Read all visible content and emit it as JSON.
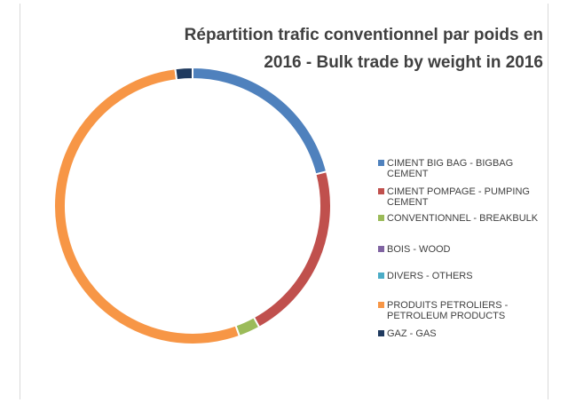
{
  "chart_data": {
    "type": "pie",
    "subtype": "donut",
    "title": "Répartition trafic conventionnel par poids en 2016 - Bulk trade by weight in 2016",
    "title_lines": [
      "Répartition trafic conventionnel par poids en",
      "2016 - Bulk trade by weight in 2016"
    ],
    "legend_position": "right",
    "slices": [
      {
        "label": "CIMENT BIG BAG - BIGBAG CEMENT",
        "value": 21.0,
        "color": "#4f81bd"
      },
      {
        "label": "CIMENT POMPAGE - PUMPING CEMENT",
        "value": 21.0,
        "color": "#c0504d"
      },
      {
        "label": "CONVENTIONNEL - BREAKBULK",
        "value": 2.5,
        "color": "#9bbb59"
      },
      {
        "label": "BOIS - WOOD",
        "value": 0,
        "color": "#8064a2"
      },
      {
        "label": "DIVERS - OTHERS",
        "value": 0,
        "color": "#4bacc6"
      },
      {
        "label": "PRODUITS PETROLIERS - PETROLEUM PRODUCTS",
        "value": 53.5,
        "color": "#f79646"
      },
      {
        "label": "GAZ - GAS",
        "value": 2.0,
        "color": "#1f3a5f"
      }
    ]
  }
}
